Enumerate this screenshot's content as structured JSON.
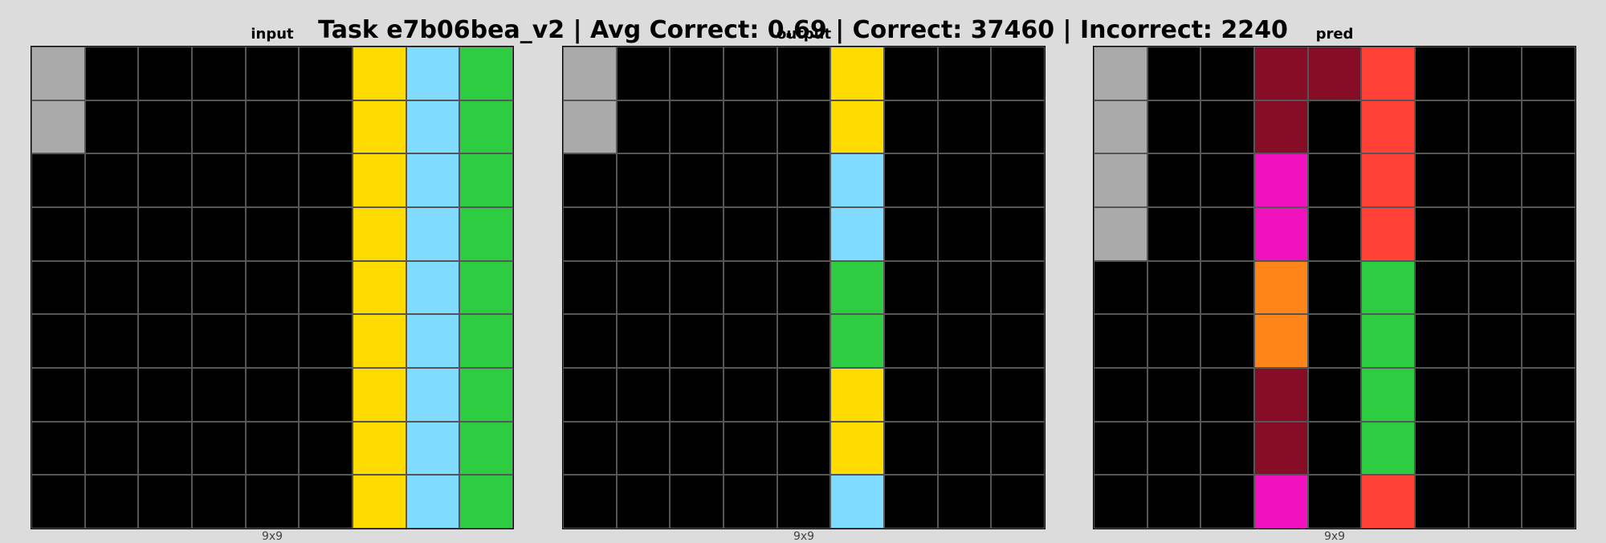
{
  "title": "Task e7b06bea_v2 | Avg Correct: 0.69 | Correct: 37460 | Incorrect: 2240",
  "palette": {
    "0": "#000000",
    "3": "#2ecc40",
    "4": "#ffdc00",
    "5": "#aaaaaa",
    "6": "#f012be",
    "7": "#ff851b",
    "8": "#7fdbff",
    "2": "#ff4136",
    "9": "#870c25"
  },
  "panels": [
    {
      "key": "input",
      "label": "input",
      "size_label": "9x9",
      "grid": [
        [
          5,
          0,
          0,
          0,
          0,
          0,
          4,
          8,
          3
        ],
        [
          5,
          0,
          0,
          0,
          0,
          0,
          4,
          8,
          3
        ],
        [
          0,
          0,
          0,
          0,
          0,
          0,
          4,
          8,
          3
        ],
        [
          0,
          0,
          0,
          0,
          0,
          0,
          4,
          8,
          3
        ],
        [
          0,
          0,
          0,
          0,
          0,
          0,
          4,
          8,
          3
        ],
        [
          0,
          0,
          0,
          0,
          0,
          0,
          4,
          8,
          3
        ],
        [
          0,
          0,
          0,
          0,
          0,
          0,
          4,
          8,
          3
        ],
        [
          0,
          0,
          0,
          0,
          0,
          0,
          4,
          8,
          3
        ],
        [
          0,
          0,
          0,
          0,
          0,
          0,
          4,
          8,
          3
        ]
      ]
    },
    {
      "key": "output",
      "label": "output",
      "size_label": "9x9",
      "grid": [
        [
          5,
          0,
          0,
          0,
          0,
          4,
          0,
          0,
          0
        ],
        [
          5,
          0,
          0,
          0,
          0,
          4,
          0,
          0,
          0
        ],
        [
          0,
          0,
          0,
          0,
          0,
          8,
          0,
          0,
          0
        ],
        [
          0,
          0,
          0,
          0,
          0,
          8,
          0,
          0,
          0
        ],
        [
          0,
          0,
          0,
          0,
          0,
          3,
          0,
          0,
          0
        ],
        [
          0,
          0,
          0,
          0,
          0,
          3,
          0,
          0,
          0
        ],
        [
          0,
          0,
          0,
          0,
          0,
          4,
          0,
          0,
          0
        ],
        [
          0,
          0,
          0,
          0,
          0,
          4,
          0,
          0,
          0
        ],
        [
          0,
          0,
          0,
          0,
          0,
          8,
          0,
          0,
          0
        ]
      ]
    },
    {
      "key": "pred",
      "label": "pred",
      "size_label": "9x9",
      "grid": [
        [
          5,
          0,
          0,
          9,
          9,
          2,
          0,
          0,
          0
        ],
        [
          5,
          0,
          0,
          9,
          0,
          2,
          0,
          0,
          0
        ],
        [
          5,
          0,
          0,
          6,
          0,
          2,
          0,
          0,
          0
        ],
        [
          5,
          0,
          0,
          6,
          0,
          2,
          0,
          0,
          0
        ],
        [
          0,
          0,
          0,
          7,
          0,
          3,
          0,
          0,
          0
        ],
        [
          0,
          0,
          0,
          7,
          0,
          3,
          0,
          0,
          0
        ],
        [
          0,
          0,
          0,
          9,
          0,
          3,
          0,
          0,
          0
        ],
        [
          0,
          0,
          0,
          9,
          0,
          3,
          0,
          0,
          0
        ],
        [
          0,
          0,
          0,
          6,
          0,
          2,
          0,
          0,
          0
        ]
      ]
    }
  ]
}
